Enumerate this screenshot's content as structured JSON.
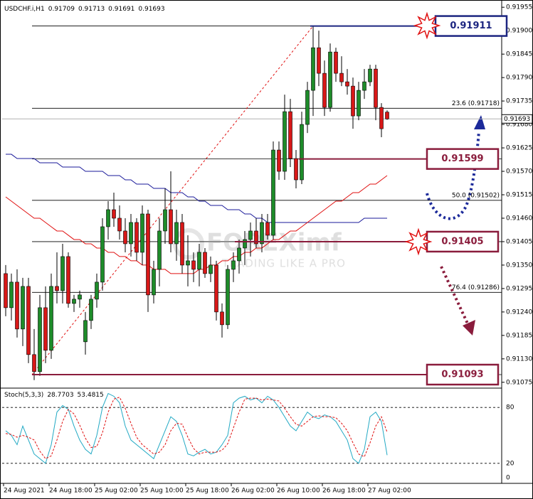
{
  "chart_data": [
    {
      "type": "candlestick",
      "title": "USDCHF.i,H1",
      "categories": [
        "24 Aug 2021",
        null,
        null,
        null,
        null,
        null,
        null,
        null,
        "24 Aug 18:00",
        null,
        null,
        null,
        null,
        null,
        null,
        null,
        "25 Aug 02:00",
        null,
        null,
        null,
        null,
        null,
        null,
        null,
        "25 Aug 10:00",
        null,
        null,
        null,
        null,
        null,
        null,
        null,
        "25 Aug 18:00",
        null,
        null,
        null,
        null,
        null,
        null,
        null,
        "26 Aug 02:00",
        null,
        null,
        null,
        null,
        null,
        null,
        null,
        "26 Aug 10:00",
        null,
        null,
        null,
        null,
        null,
        null,
        null,
        "26 Aug 18:00",
        null,
        null,
        null,
        null,
        null,
        null,
        null,
        "27 Aug 02:00",
        null,
        null,
        null
      ],
      "open": [
        0.9133,
        0.9125,
        0.9131,
        0.912,
        0.913,
        0.9114,
        0.911,
        0.9125,
        0.9115,
        0.913,
        0.9129,
        0.9137,
        0.9126,
        0.9127,
        0.9117,
        0.9122,
        0.9127,
        0.9131,
        0.9144,
        0.9148,
        0.9146,
        0.9143,
        0.914,
        0.9145,
        0.9138,
        0.9147,
        0.9128,
        0.9134,
        0.9143,
        0.9148,
        0.914,
        0.9145,
        0.9135,
        0.9136,
        0.9134,
        0.9138,
        0.9133,
        0.9135,
        0.9124,
        0.9121,
        0.9134,
        0.9136,
        0.9139,
        0.9141,
        0.9143,
        0.914,
        0.9145,
        0.9142,
        0.9162,
        0.9157,
        0.9171,
        0.916,
        0.9155,
        0.9168,
        0.9176,
        0.9186,
        0.918,
        0.9172,
        0.9185,
        0.918,
        0.9178,
        0.9177,
        0.917,
        0.9176,
        0.9178,
        0.9181,
        0.9172,
        0.91709
      ],
      "high": [
        0.9135,
        0.9133,
        0.9134,
        0.9132,
        0.9132,
        0.912,
        0.9128,
        0.913,
        0.9133,
        0.9138,
        0.914,
        0.9138,
        0.9128,
        0.9129,
        0.9124,
        0.9128,
        0.9133,
        0.9146,
        0.915,
        0.9152,
        0.9149,
        0.9146,
        0.9147,
        0.9146,
        0.9149,
        0.9148,
        0.9136,
        0.9146,
        0.9153,
        0.9157,
        0.9148,
        0.9147,
        0.9142,
        0.9138,
        0.914,
        0.9139,
        0.9137,
        0.9136,
        0.9126,
        0.9135,
        0.9138,
        0.9141,
        0.9143,
        0.9145,
        0.9146,
        0.9147,
        0.9147,
        0.9164,
        0.9164,
        0.9175,
        0.9174,
        0.9162,
        0.9171,
        0.9178,
        0.9191,
        0.919,
        0.9183,
        0.9187,
        0.9186,
        0.9184,
        0.9181,
        0.9179,
        0.9178,
        0.9181,
        0.9182,
        0.9182,
        0.9173,
        0.91713
      ],
      "low": [
        0.9123,
        0.9122,
        0.9118,
        0.9116,
        0.9112,
        0.9108,
        0.9109,
        0.9112,
        0.9113,
        0.9126,
        0.9126,
        0.9125,
        0.9124,
        0.9125,
        0.9114,
        0.912,
        0.9125,
        0.9129,
        0.9141,
        0.9144,
        0.9141,
        0.9138,
        0.9137,
        0.9136,
        0.9135,
        0.9124,
        0.9126,
        0.913,
        0.914,
        0.9138,
        0.9136,
        0.9133,
        0.913,
        0.9131,
        0.913,
        0.9132,
        0.9131,
        0.9122,
        0.9118,
        0.912,
        0.9131,
        0.9133,
        0.9135,
        0.9137,
        0.9139,
        0.9138,
        0.9141,
        0.9141,
        0.9155,
        0.9155,
        0.9158,
        0.9153,
        0.9154,
        0.9166,
        0.917,
        0.9177,
        0.917,
        0.9171,
        0.9178,
        0.9177,
        0.9175,
        0.9167,
        0.9169,
        0.9174,
        0.9177,
        0.9169,
        0.9165,
        0.91691
      ],
      "close": [
        0.9125,
        0.9131,
        0.912,
        0.913,
        0.9114,
        0.911,
        0.9125,
        0.9115,
        0.913,
        0.9129,
        0.9137,
        0.9126,
        0.9127,
        0.9128,
        0.9122,
        0.9127,
        0.9131,
        0.9144,
        0.9148,
        0.9146,
        0.9143,
        0.914,
        0.9145,
        0.9138,
        0.9147,
        0.9128,
        0.9134,
        0.9143,
        0.9148,
        0.914,
        0.9145,
        0.9135,
        0.9136,
        0.9134,
        0.9138,
        0.9133,
        0.9135,
        0.9124,
        0.9121,
        0.9134,
        0.9136,
        0.9139,
        0.9141,
        0.9143,
        0.914,
        0.9145,
        0.9142,
        0.9162,
        0.9157,
        0.9171,
        0.916,
        0.9155,
        0.9168,
        0.9176,
        0.9186,
        0.918,
        0.9172,
        0.9185,
        0.918,
        0.9178,
        0.9177,
        0.917,
        0.9176,
        0.9178,
        0.9181,
        0.9172,
        0.9167,
        0.91693
      ],
      "up_color": "#1e8c2a",
      "down_color": "#d81818",
      "moving_averages": [
        {
          "color": "#1a1a9a",
          "values": [
            0.9161,
            0.9161,
            0.916,
            0.916,
            0.916,
            0.916,
            0.9159,
            0.9159,
            0.9159,
            0.9159,
            0.9158,
            0.9158,
            0.9158,
            0.9158,
            0.9157,
            0.9157,
            0.9157,
            0.9157,
            0.9156,
            0.9156,
            0.9156,
            0.9155,
            0.9155,
            0.9154,
            0.9154,
            0.9154,
            0.9153,
            0.9153,
            0.9153,
            0.9152,
            0.9152,
            0.9152,
            0.9151,
            0.9151,
            0.915,
            0.915,
            0.9149,
            0.9149,
            0.9149,
            0.9148,
            0.9148,
            0.9148,
            0.9147,
            0.9147,
            0.9146,
            0.9146,
            0.9145,
            0.9145,
            0.9145,
            0.9145,
            0.9145,
            0.9145,
            0.9145,
            0.9145,
            0.9145,
            0.9145,
            0.9145,
            0.9145,
            0.9145,
            0.9145,
            0.9145,
            0.9145,
            0.9145,
            0.9146,
            0.9146,
            0.9146,
            0.9146,
            0.9146
          ]
        },
        {
          "color": "#e01010",
          "values": [
            0.9151,
            0.915,
            0.9149,
            0.9148,
            0.9147,
            0.9146,
            0.9146,
            0.9145,
            0.9144,
            0.9143,
            0.9143,
            0.9142,
            0.9141,
            0.9141,
            0.914,
            0.914,
            0.9139,
            0.9139,
            0.9138,
            0.9138,
            0.9137,
            0.9137,
            0.9136,
            0.9136,
            0.9135,
            0.9135,
            0.9134,
            0.9134,
            0.9134,
            0.9133,
            0.9133,
            0.9133,
            0.9133,
            0.9133,
            0.9134,
            0.9134,
            0.9135,
            0.9135,
            0.9136,
            0.9136,
            0.9137,
            0.9137,
            0.9138,
            0.9138,
            0.9139,
            0.9139,
            0.914,
            0.9141,
            0.9141,
            0.9142,
            0.9143,
            0.9143,
            0.9144,
            0.9145,
            0.9146,
            0.9147,
            0.9148,
            0.9149,
            0.915,
            0.915,
            0.9151,
            0.9152,
            0.9152,
            0.9153,
            0.9154,
            0.9154,
            0.9155,
            0.9156
          ]
        }
      ],
      "ylim": [
        0.91063,
        0.91967
      ],
      "yticks": [
        0.91955,
        {
          "value": 0.919,
          "label": "0.91900"
        },
        0.91845,
        {
          "value": 0.9179,
          "label": "0.91790"
        },
        0.91735,
        {
          "value": 0.9168,
          "label": "0.91680"
        },
        0.91625,
        {
          "value": 0.9157,
          "label": "0.91570"
        },
        0.91515,
        {
          "value": 0.9146,
          "label": "0.91460"
        },
        0.91405,
        {
          "value": 0.9135,
          "label": "0.91350"
        },
        0.91295,
        {
          "value": 0.9124,
          "label": "0.91240"
        },
        0.91185,
        {
          "value": 0.9113,
          "label": "0.91130"
        },
        0.91075
      ],
      "fib_levels": [
        {
          "value": 0.91911
        },
        {
          "value": 0.91718,
          "label": "23.6 (0.91718)"
        },
        {
          "value": 0.91599
        },
        {
          "value": 0.91502,
          "label": "50.0 (0.91502)"
        },
        {
          "value": 0.91405
        },
        {
          "value": 0.91286,
          "label": "76.4 (0.91286)"
        },
        {
          "value": 0.91093
        }
      ],
      "price_boxes": [
        0.91911,
        0.91599,
        0.91405,
        0.91093
      ],
      "box_colors": [
        "#1c2580",
        "#8a1c3c",
        "#8a1c3c",
        "#8a1c3c"
      ],
      "watermark": {
        "brand": "FOREXimf",
        "slogan": "TRADING LIKE A PRO"
      }
    },
    {
      "type": "line",
      "title": "Stoch(5,3,3)",
      "series": [
        {
          "color": "#22a9c4",
          "values": [
            55,
            50,
            40,
            60,
            45,
            30,
            25,
            20,
            40,
            75,
            82,
            78,
            60,
            45,
            35,
            30,
            50,
            80,
            95,
            92,
            85,
            60,
            45,
            40,
            35,
            30,
            25,
            40,
            55,
            70,
            65,
            50,
            30,
            28,
            32,
            35,
            30,
            32,
            40,
            50,
            85,
            90,
            92,
            88,
            90,
            85,
            92,
            88,
            80,
            70,
            60,
            55,
            65,
            75,
            70,
            68,
            72,
            70,
            65,
            55,
            45,
            25,
            20,
            35,
            70,
            75,
            65,
            28.7703
          ]
        },
        {
          "color": "#e01010",
          "dash": true,
          "values": [
            52,
            51,
            48,
            50,
            48,
            45,
            33,
            25,
            28,
            45,
            65,
            78,
            73,
            61,
            47,
            37,
            38,
            53,
            75,
            89,
            91,
            79,
            63,
            48,
            40,
            35,
            30,
            32,
            40,
            55,
            63,
            62,
            48,
            36,
            30,
            32,
            32,
            32,
            34,
            41,
            58,
            75,
            89,
            90,
            90,
            88,
            89,
            88,
            87,
            79,
            70,
            62,
            60,
            65,
            70,
            71,
            70,
            70,
            69,
            63,
            55,
            42,
            30,
            27,
            42,
            60,
            70,
            53.4815
          ]
        }
      ],
      "ylim": [
        0,
        100
      ],
      "yticks": [
        0,
        20,
        80
      ]
    }
  ]
}
